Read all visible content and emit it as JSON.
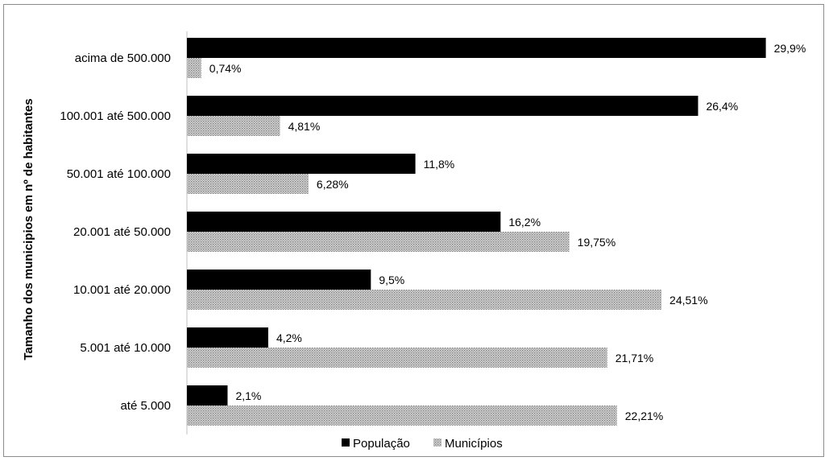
{
  "chart_data": {
    "type": "bar",
    "orientation": "horizontal",
    "ylabel": "Tamanho dos municipios em nº de habitantes",
    "categories": [
      "acima de 500.000",
      "100.001 até 500.000",
      "50.001 até 100.000",
      "20.001 até 50.000",
      "10.001 até 20.000",
      "5.001 até 10.000",
      "até 5.000"
    ],
    "series": [
      {
        "name": "População",
        "color": "#000000",
        "values": [
          29.9,
          26.4,
          11.8,
          16.2,
          9.5,
          4.2,
          2.1
        ],
        "labels": [
          "29,9%",
          "26,4%",
          "11,8%",
          "16,2%",
          "9,5%",
          "4,2%",
          "2,1%"
        ]
      },
      {
        "name": "Municípios",
        "color": "#bdbdbd",
        "pattern": "dotted",
        "values": [
          0.74,
          4.81,
          6.28,
          19.75,
          24.51,
          21.71,
          22.21
        ],
        "labels": [
          "0,74%",
          "4,81%",
          "6,28%",
          "19,75%",
          "24,51%",
          "21,71%",
          "22,21%"
        ]
      }
    ],
    "xlim": [
      0,
      30
    ],
    "grid": false,
    "legend_position": "bottom"
  }
}
